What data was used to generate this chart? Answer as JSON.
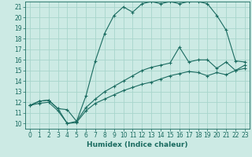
{
  "xlabel": "Humidex (Indice chaleur)",
  "xlim": [
    -0.5,
    23.5
  ],
  "ylim": [
    9.5,
    21.5
  ],
  "xticks": [
    0,
    1,
    2,
    3,
    4,
    5,
    6,
    7,
    8,
    9,
    10,
    11,
    12,
    13,
    14,
    15,
    16,
    17,
    18,
    19,
    20,
    21,
    22,
    23
  ],
  "yticks": [
    10,
    11,
    12,
    13,
    14,
    15,
    16,
    17,
    18,
    19,
    20,
    21
  ],
  "bg_color": "#cceae4",
  "grid_color": "#a8d5cc",
  "line_color": "#1a6b60",
  "curve1_x": [
    0,
    1,
    2,
    3,
    4,
    5,
    6,
    7,
    8,
    9,
    10,
    11,
    12,
    13,
    14,
    15,
    16,
    17,
    18,
    19,
    20,
    21,
    22,
    23
  ],
  "curve1_y": [
    11.7,
    12.1,
    12.2,
    11.4,
    11.3,
    10.2,
    12.6,
    15.9,
    18.5,
    20.2,
    21.0,
    20.5,
    21.3,
    21.5,
    21.3,
    21.5,
    21.3,
    21.5,
    21.5,
    21.3,
    20.2,
    18.8,
    15.9,
    15.8
  ],
  "curve2_x": [
    0,
    1,
    2,
    3,
    4,
    5,
    6,
    7,
    8,
    9,
    10,
    11,
    12,
    13,
    14,
    15,
    16,
    17,
    18,
    19,
    20,
    21,
    22,
    23
  ],
  "curve2_y": [
    11.7,
    12.1,
    12.2,
    11.4,
    10.0,
    10.2,
    11.5,
    12.3,
    13.0,
    13.5,
    14.0,
    14.5,
    15.0,
    15.3,
    15.5,
    15.7,
    17.2,
    15.8,
    16.0,
    16.0,
    15.2,
    15.8,
    15.0,
    15.5
  ],
  "curve3_x": [
    0,
    1,
    2,
    3,
    4,
    5,
    6,
    7,
    8,
    9,
    10,
    11,
    12,
    13,
    14,
    15,
    16,
    17,
    18,
    19,
    20,
    21,
    22,
    23
  ],
  "curve3_y": [
    11.7,
    11.9,
    12.0,
    11.2,
    10.0,
    10.1,
    11.2,
    11.9,
    12.3,
    12.7,
    13.1,
    13.4,
    13.7,
    13.9,
    14.2,
    14.5,
    14.7,
    14.9,
    14.8,
    14.5,
    14.8,
    14.6,
    15.0,
    15.2
  ],
  "marker": "+",
  "markersize": 3,
  "linewidth": 0.8,
  "label_fontsize": 6.5,
  "tick_fontsize": 5.5
}
